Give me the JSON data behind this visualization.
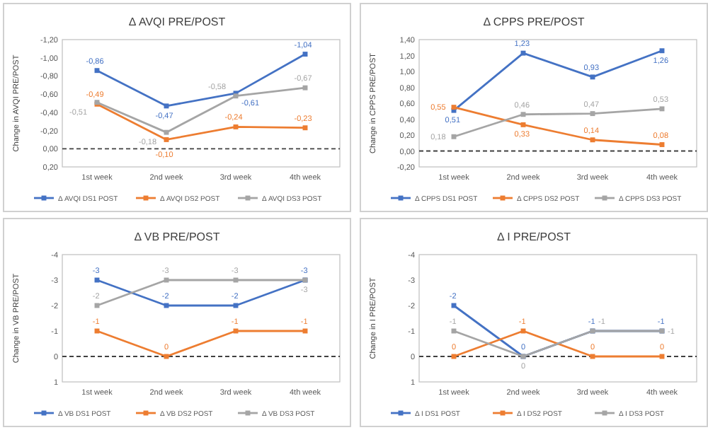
{
  "chart_data": [
    {
      "type": "line",
      "title": "Δ AVQI PRE/POST",
      "ylabel": "Change in AVQI PRE/POST",
      "categories": [
        "1st week",
        "2nd week",
        "3rd week",
        "4th week"
      ],
      "legend": "bottom",
      "marker": "square",
      "ylim": [
        0.2,
        -1.2
      ],
      "yticks": [
        {
          "value": -1.2,
          "label": "-1,20"
        },
        {
          "value": -1.0,
          "label": "-1,00"
        },
        {
          "value": -0.8,
          "label": "-0,80"
        },
        {
          "value": -0.6,
          "label": "-0,60"
        },
        {
          "value": -0.4,
          "label": "-0,40"
        },
        {
          "value": -0.2,
          "label": "-0,20"
        },
        {
          "value": 0,
          "label": "0,00"
        },
        {
          "value": 0.2,
          "label": "0,20"
        }
      ],
      "ref_lines": [
        {
          "axis": "y",
          "value": 0,
          "color": "#404040",
          "line_style": "dashed"
        }
      ],
      "series": [
        {
          "name": "Δ AVQI DS1 POST",
          "color": "#4472c4",
          "values": [
            -0.86,
            -0.47,
            -0.61,
            -1.04
          ],
          "value_labels": [
            "-0,86",
            "-0,47",
            "-0,61",
            "-1,04"
          ]
        },
        {
          "name": "Δ AVQI DS2 POST",
          "color": "#ed7d31",
          "values": [
            -0.49,
            -0.1,
            -0.24,
            -0.23
          ],
          "value_labels": [
            "-0,49",
            "-0,10",
            "-0,24",
            "-0,23"
          ]
        },
        {
          "name": "Δ AVQI DS3 POST",
          "color": "#a5a5a5",
          "values": [
            -0.51,
            -0.18,
            -0.58,
            -0.67
          ],
          "value_labels": [
            "-0,51",
            "-0,18",
            "-0,58",
            "-0,67"
          ]
        }
      ]
    },
    {
      "type": "line",
      "title": "Δ CPPS PRE/POST",
      "ylabel": "Change in CPPS PRE/POST",
      "categories": [
        "1st week",
        "2nd week",
        "3rd week",
        "4th week"
      ],
      "legend": "bottom",
      "marker": "square",
      "ylim": [
        -0.2,
        1.4
      ],
      "yticks": [
        {
          "value": -0.2,
          "label": "-0,20"
        },
        {
          "value": 0,
          "label": "0,00"
        },
        {
          "value": 0.2,
          "label": "0,20"
        },
        {
          "value": 0.4,
          "label": "0,40"
        },
        {
          "value": 0.6,
          "label": "0,60"
        },
        {
          "value": 0.8,
          "label": "0,80"
        },
        {
          "value": 1.0,
          "label": "1,00"
        },
        {
          "value": 1.2,
          "label": "1,20"
        },
        {
          "value": 1.4,
          "label": "1,40"
        }
      ],
      "ref_lines": [
        {
          "axis": "y",
          "value": 0,
          "color": "#404040",
          "line_style": "dashed"
        }
      ],
      "series": [
        {
          "name": "Δ CPPS DS1 POST",
          "color": "#4472c4",
          "values": [
            0.51,
            1.23,
            0.93,
            1.26
          ],
          "value_labels": [
            "0,51",
            "1,23",
            "0,93",
            "1,26"
          ]
        },
        {
          "name": "Δ CPPS DS2 POST",
          "color": "#ed7d31",
          "values": [
            0.55,
            0.33,
            0.14,
            0.08
          ],
          "value_labels": [
            "0,55",
            "0,33",
            "0,14",
            "0,08"
          ]
        },
        {
          "name": "Δ CPPS DS3 POST",
          "color": "#a5a5a5",
          "values": [
            0.18,
            0.46,
            0.47,
            0.53
          ],
          "value_labels": [
            "0,18",
            "0,46",
            "0,47",
            "0,53"
          ]
        }
      ]
    },
    {
      "type": "line",
      "title": "Δ VB PRE/POST",
      "ylabel": "Change in VB PRE/POST",
      "categories": [
        "1st week",
        "2nd week",
        "3rd week",
        "4th week"
      ],
      "legend": "bottom",
      "marker": "square",
      "ylim": [
        1,
        -4
      ],
      "yticks": [
        -4,
        -3,
        -2,
        -1,
        0,
        1
      ],
      "ref_lines": [
        {
          "axis": "y",
          "value": 0,
          "color": "#404040",
          "line_style": "dashed"
        }
      ],
      "series": [
        {
          "name": "Δ VB DS1 POST",
          "color": "#4472c4",
          "values": [
            -3,
            -2,
            -2,
            -3
          ],
          "value_labels": [
            "-3",
            "-2",
            "-2",
            "-3"
          ]
        },
        {
          "name": "Δ VB DS2 POST",
          "color": "#ed7d31",
          "values": [
            -1,
            0,
            -1,
            -1
          ],
          "value_labels": [
            "-1",
            "0",
            "-1",
            "-1"
          ]
        },
        {
          "name": "Δ VB DS3 POST",
          "color": "#a5a5a5",
          "values": [
            -2,
            -3,
            -3,
            -3
          ],
          "value_labels": [
            "-2",
            "-3",
            "-3",
            "-3"
          ]
        }
      ]
    },
    {
      "type": "line",
      "title": "Δ I PRE/POST",
      "ylabel": "Change in I PRE/POST",
      "categories": [
        "1st week",
        "2nd week",
        "3rd week",
        "4th week"
      ],
      "legend": "bottom",
      "marker": "square",
      "ylim": [
        1,
        -4
      ],
      "yticks": [
        -4,
        -3,
        -2,
        -1,
        0,
        1
      ],
      "ref_lines": [
        {
          "axis": "y",
          "value": 0,
          "color": "#404040",
          "line_style": "dashed"
        }
      ],
      "series": [
        {
          "name": "Δ I DS1 POST",
          "color": "#4472c4",
          "values": [
            -2,
            0,
            -1,
            -1
          ],
          "value_labels": [
            "-2",
            "0",
            "-1",
            "-1"
          ]
        },
        {
          "name": "Δ I DS2 POST",
          "color": "#ed7d31",
          "values": [
            0,
            -1,
            0,
            0
          ],
          "value_labels": [
            "0",
            "-1",
            "0",
            "0"
          ]
        },
        {
          "name": "Δ I DS3 POST",
          "color": "#a5a5a5",
          "values": [
            -1,
            0,
            -1,
            -1
          ],
          "value_labels": [
            "-1",
            "0",
            "-1",
            "-1"
          ]
        }
      ]
    }
  ]
}
